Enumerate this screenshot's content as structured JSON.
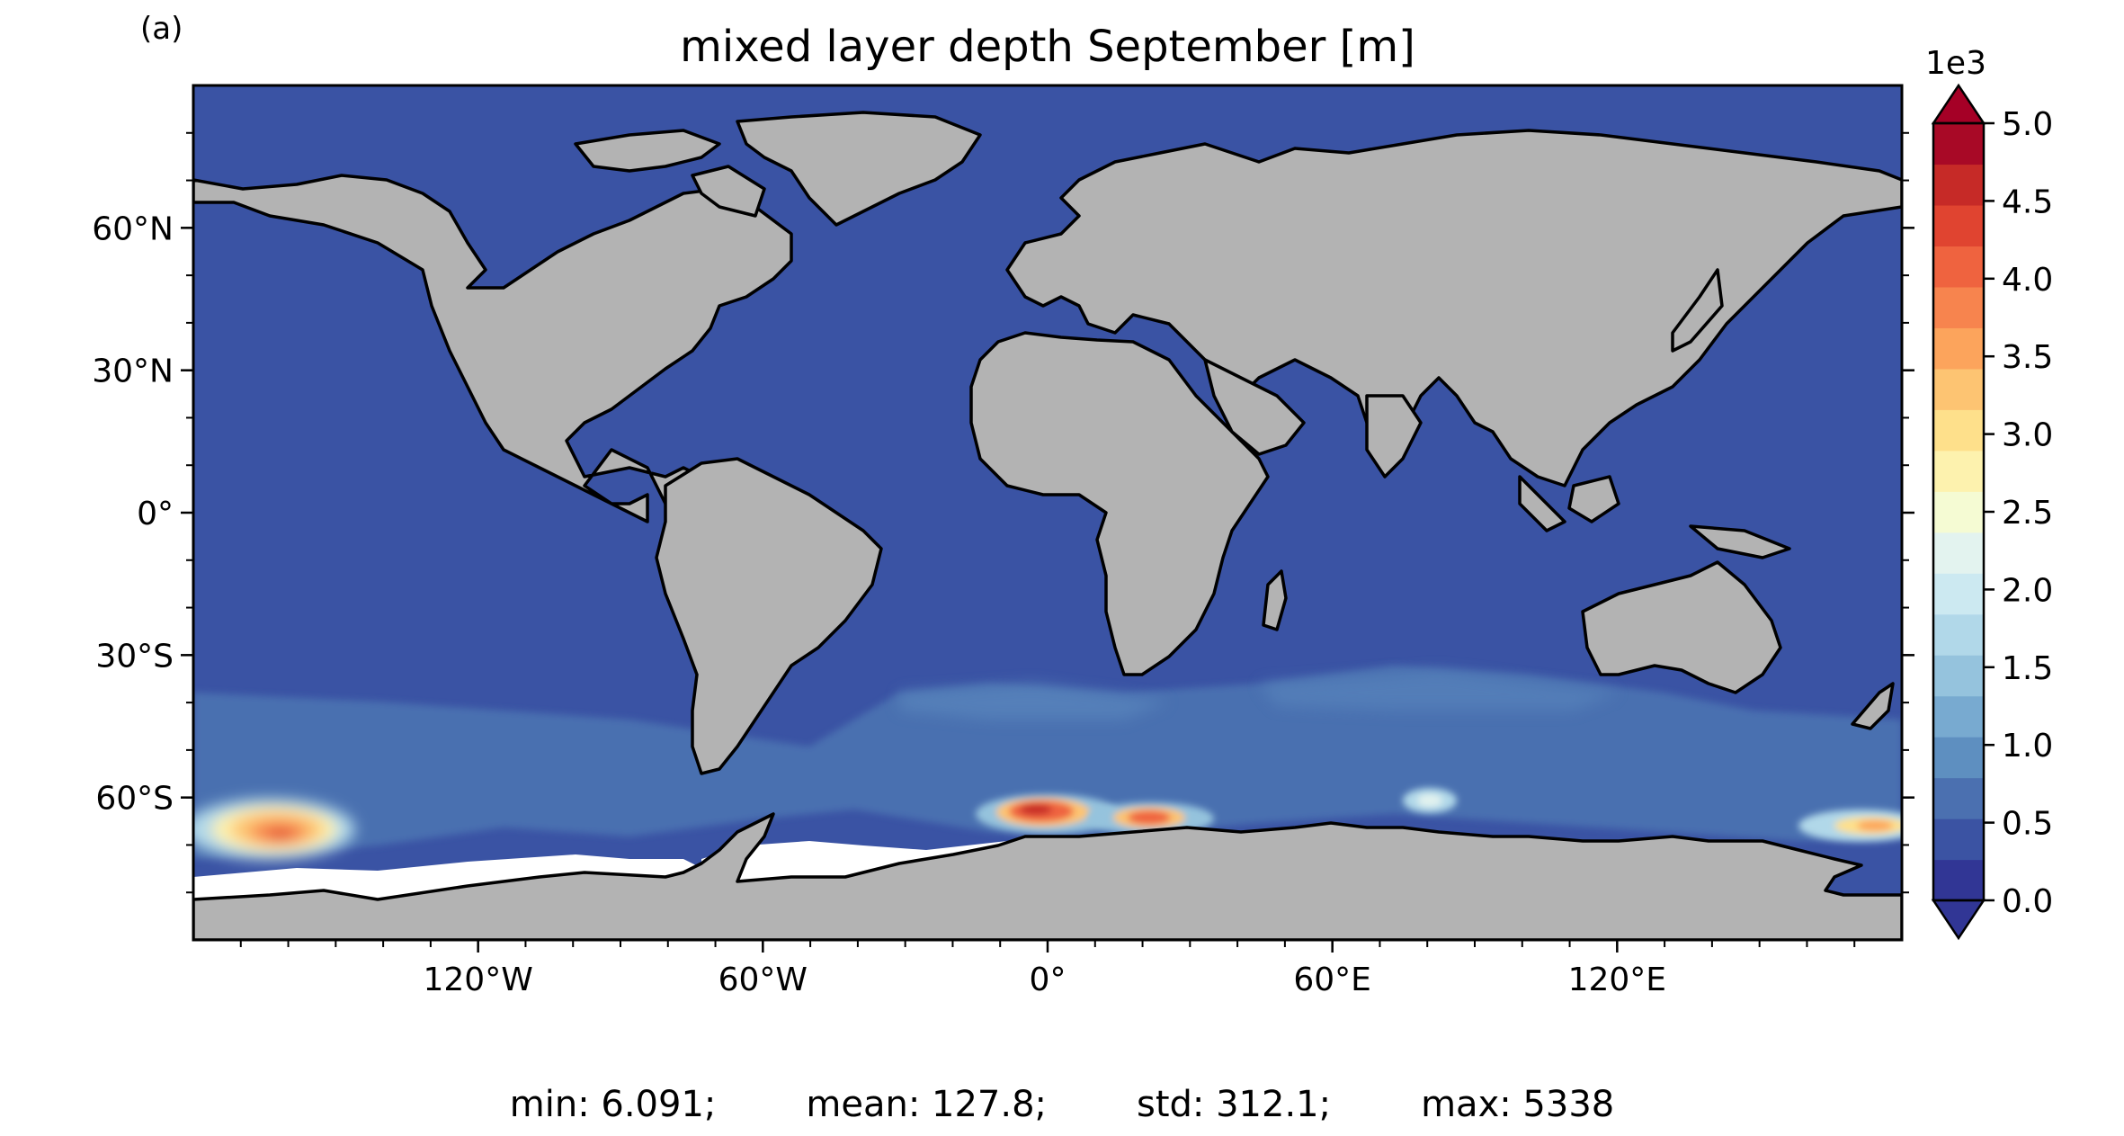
{
  "panel_label": "(a)",
  "title": "mixed layer depth September [m]",
  "map": {
    "projection": "equirectangular",
    "lon_range": [
      -180,
      180
    ],
    "lat_range": [
      -90,
      90
    ],
    "lon_ticks": [
      {
        "value": -120,
        "label": "120°W"
      },
      {
        "value": -60,
        "label": "60°W"
      },
      {
        "value": 0,
        "label": "0°"
      },
      {
        "value": 60,
        "label": "60°E"
      },
      {
        "value": 120,
        "label": "120°E"
      }
    ],
    "lat_ticks": [
      {
        "value": 60,
        "label": "60°N"
      },
      {
        "value": 30,
        "label": "30°N"
      },
      {
        "value": 0,
        "label": "0°"
      },
      {
        "value": -30,
        "label": "30°S"
      },
      {
        "value": -60,
        "label": "60°S"
      }
    ],
    "ocean_color": "#3a53a4",
    "land_color": "#b3b3b3",
    "missing_color": "#ffffff",
    "regions": [
      {
        "name": "Southern Ocean band",
        "lon": [
          -180,
          180
        ],
        "lat": [
          -62,
          -38
        ],
        "value": 250
      },
      {
        "name": "Pacific sector deep convection",
        "lon": [
          -180,
          -140
        ],
        "lat": [
          -70,
          -62
        ],
        "value": 3000,
        "peak": 4000
      },
      {
        "name": "Weddell Sea deep convection",
        "lon": [
          -10,
          10
        ],
        "lat": [
          -66,
          -62
        ],
        "value": 3500,
        "peak": 4900
      },
      {
        "name": "Lazarev Sea deep convection",
        "lon": [
          15,
          35
        ],
        "lat": [
          -67,
          -63
        ],
        "value": 3000,
        "peak": 4700
      },
      {
        "name": "Prydz Bay",
        "lon": [
          70,
          90
        ],
        "lat": [
          -66,
          -62
        ],
        "value": 1200
      },
      {
        "name": "Ross Sea sector",
        "lon": [
          155,
          180
        ],
        "lat": [
          -68,
          -63
        ],
        "value": 2200
      }
    ]
  },
  "colorbar": {
    "scale_label": "1e3",
    "min": 0,
    "max": 5000,
    "extend": "both",
    "tick_labels": [
      "0.0",
      "0.5",
      "1.0",
      "1.5",
      "2.0",
      "2.5",
      "3.0",
      "3.5",
      "4.0",
      "4.5",
      "5.0"
    ],
    "colormap": "RdYlBu_r",
    "colors": [
      "#313695",
      "#3b53a3",
      "#4b70b0",
      "#5e8fc0",
      "#78aad0",
      "#95c3dd",
      "#b1d8e9",
      "#cce9f1",
      "#e3f3ef",
      "#f5fbd3",
      "#fdf2ae",
      "#fee08b",
      "#fdc472",
      "#fca45c",
      "#f7844e",
      "#ef633f",
      "#e04430",
      "#c62a27",
      "#a80926"
    ],
    "over_color": "#a50026",
    "under_color": "#313695"
  },
  "stats": {
    "min": "min: 6.091;",
    "mean": "mean: 127.8;",
    "std": "std: 312.1;",
    "max": "max: 5338"
  }
}
